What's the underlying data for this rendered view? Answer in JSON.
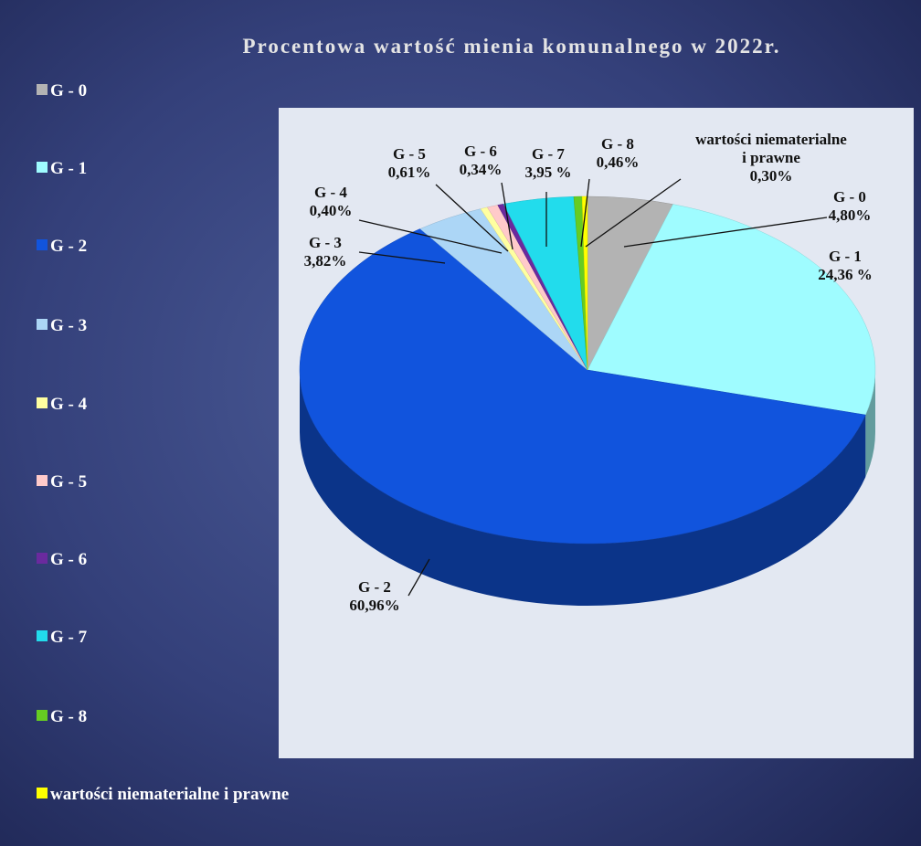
{
  "chart_data": {
    "type": "pie",
    "title": "Procentowa wartość mienia komunalnego w 2022r.",
    "categories": [
      "G - 0",
      "G - 1",
      "G - 2",
      "G - 3",
      "G - 4",
      "G - 5",
      "G - 6",
      "G - 7",
      "G - 8",
      "wartości niematerialne i prawne"
    ],
    "values": [
      4.8,
      24.36,
      60.96,
      3.82,
      0.4,
      0.61,
      0.34,
      3.95,
      0.46,
      0.3
    ],
    "value_labels": [
      "4,80%",
      "24,36 %",
      "60,96%",
      "3,82%",
      "0,40%",
      "0,61%",
      "0,34%",
      "3,95 %",
      "0,46%",
      "0,30%"
    ],
    "colors": [
      "#b3b3b3",
      "#9ffcff",
      "#1154dd",
      "#acd6f6",
      "#ffffa0",
      "#ffcaca",
      "#6a2a9e",
      "#22dcec",
      "#66cc22",
      "#ffff00"
    ],
    "legend": "left"
  }
}
